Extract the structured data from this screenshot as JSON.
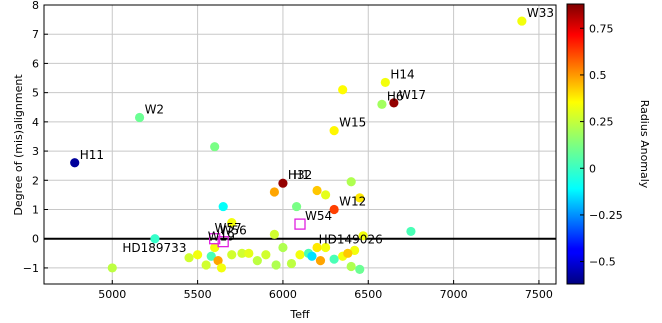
{
  "chart_data": {
    "type": "scatter",
    "xlabel": "Teff",
    "ylabel": "Degree of (mis)alignment",
    "xlim": [
      4600,
      7600
    ],
    "ylim": [
      -1.55,
      8
    ],
    "x_ticks": [
      5000,
      5500,
      6000,
      6500,
      7000,
      7500
    ],
    "y_ticks": [
      -1,
      0,
      1,
      2,
      3,
      4,
      5,
      6,
      7,
      8
    ],
    "grid": true,
    "colorbar": {
      "label": "Radius Anomaly",
      "range": [
        -0.62,
        0.88
      ],
      "ticks": [
        -0.5,
        -0.25,
        0,
        0.25,
        0.5,
        0.75
      ],
      "tick_labels": [
        "−0.5",
        "−0.25",
        "0",
        "0.25",
        "0.5",
        "0.75"
      ],
      "colormap": "jet"
    },
    "points": [
      {
        "label": "W33",
        "x": 7400,
        "y": 7.45,
        "c": 0.3
      },
      {
        "label": "H14",
        "x": 6600,
        "y": 5.35,
        "c": 0.3
      },
      {
        "label": "H6",
        "x": 6580,
        "y": 4.6,
        "c": 0.18
      },
      {
        "label": "W17",
        "x": 6650,
        "y": 4.65,
        "c": 0.85
      },
      {
        "label": "",
        "x": 6350,
        "y": 5.1,
        "c": 0.32
      },
      {
        "label": "W2",
        "x": 5160,
        "y": 4.15,
        "c": 0.1
      },
      {
        "label": "W15",
        "x": 6300,
        "y": 3.7,
        "c": 0.33
      },
      {
        "label": "",
        "x": 5600,
        "y": 3.15,
        "c": 0.12
      },
      {
        "label": "H11",
        "x": 4780,
        "y": 2.6,
        "c": -0.58
      },
      {
        "label": "H32",
        "x": 6000,
        "y": 1.9,
        "c": 0.85
      },
      {
        "label": "",
        "x": 5950,
        "y": 1.6,
        "c": 0.45
      },
      {
        "label": "",
        "x": 6200,
        "y": 1.65,
        "c": 0.4
      },
      {
        "label": "",
        "x": 6250,
        "y": 1.5,
        "c": 0.28
      },
      {
        "label": "",
        "x": 6400,
        "y": 1.95,
        "c": 0.2
      },
      {
        "label": "W12",
        "x": 6300,
        "y": 1.0,
        "c": 0.6
      },
      {
        "label": "",
        "x": 6450,
        "y": 1.4,
        "c": 0.35
      },
      {
        "label": "",
        "x": 5650,
        "y": 1.1,
        "c": -0.05
      },
      {
        "label": "",
        "x": 6080,
        "y": 1.1,
        "c": 0.12
      },
      {
        "label": "",
        "x": 5700,
        "y": 0.55,
        "c": 0.3
      },
      {
        "label": "",
        "x": 5950,
        "y": 0.15,
        "c": 0.25
      },
      {
        "label": "",
        "x": 6470,
        "y": 0.1,
        "c": 0.3
      },
      {
        "label": "",
        "x": 6750,
        "y": 0.25,
        "c": 0.05
      },
      {
        "label": "",
        "x": 5250,
        "y": 0.0,
        "c": 0.02
      },
      {
        "label": "",
        "x": 5600,
        "y": -0.3,
        "c": 0.3
      },
      {
        "label": "",
        "x": 6000,
        "y": -0.3,
        "c": 0.2
      },
      {
        "label": "",
        "x": 6200,
        "y": -0.3,
        "c": 0.35
      },
      {
        "label": "",
        "x": 6420,
        "y": -0.4,
        "c": 0.3
      },
      {
        "label": "",
        "x": 5000,
        "y": -1.0,
        "c": 0.22
      },
      {
        "label": "",
        "x": 5450,
        "y": -0.65,
        "c": 0.25
      },
      {
        "label": "",
        "x": 5500,
        "y": -0.55,
        "c": 0.3
      },
      {
        "label": "",
        "x": 5550,
        "y": -0.9,
        "c": 0.25
      },
      {
        "label": "",
        "x": 5580,
        "y": -0.6,
        "c": 0.05
      },
      {
        "label": "",
        "x": 5620,
        "y": -0.75,
        "c": 0.45
      },
      {
        "label": "",
        "x": 5640,
        "y": -1.0,
        "c": 0.3
      },
      {
        "label": "",
        "x": 5700,
        "y": -0.55,
        "c": 0.25
      },
      {
        "label": "",
        "x": 5760,
        "y": -0.5,
        "c": 0.25
      },
      {
        "label": "",
        "x": 5800,
        "y": -0.5,
        "c": 0.28
      },
      {
        "label": "",
        "x": 5850,
        "y": -0.75,
        "c": 0.22
      },
      {
        "label": "",
        "x": 5900,
        "y": -0.55,
        "c": 0.25
      },
      {
        "label": "",
        "x": 5960,
        "y": -0.9,
        "c": 0.2
      },
      {
        "label": "",
        "x": 6050,
        "y": -0.85,
        "c": 0.22
      },
      {
        "label": "",
        "x": 6100,
        "y": -0.55,
        "c": 0.3
      },
      {
        "label": "",
        "x": 6150,
        "y": -0.5,
        "c": 0.05
      },
      {
        "label": "",
        "x": 6170,
        "y": -0.6,
        "c": -0.1
      },
      {
        "label": "",
        "x": 6220,
        "y": -0.75,
        "c": 0.45
      },
      {
        "label": "",
        "x": 6250,
        "y": -0.3,
        "c": 0.3
      },
      {
        "label": "",
        "x": 6300,
        "y": -0.7,
        "c": 0.05
      },
      {
        "label": "",
        "x": 6350,
        "y": -0.6,
        "c": 0.3
      },
      {
        "label": "",
        "x": 6380,
        "y": -0.5,
        "c": 0.4
      },
      {
        "label": "",
        "x": 6400,
        "y": -0.95,
        "c": 0.2
      },
      {
        "label": "",
        "x": 6450,
        "y": -1.05,
        "c": 0.1
      }
    ],
    "square_markers": [
      {
        "label": "W54",
        "x": 6100,
        "y": 0.5
      },
      {
        "label": "W56",
        "x": 5600,
        "y": 0.0
      },
      {
        "label": "",
        "x": 5650,
        "y": -0.1
      }
    ],
    "annotations": [
      {
        "text": "H1",
        "x": 6030,
        "y": 1.9
      },
      {
        "text": "W57",
        "x": 5570,
        "y": 0.1
      },
      {
        "text": "W19",
        "x": 5530,
        "y": -0.2
      },
      {
        "text": "HD149026",
        "x": 6180,
        "y": -0.3
      },
      {
        "text": "HD189733",
        "x": 5030,
        "y": -0.6
      }
    ]
  }
}
